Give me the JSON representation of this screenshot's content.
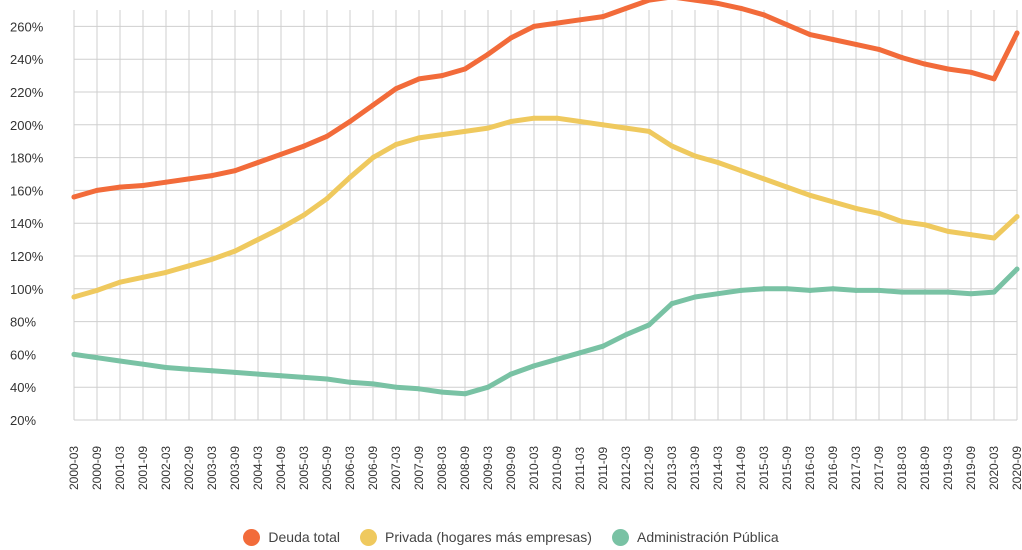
{
  "chart_data": {
    "type": "line",
    "title": "",
    "xlabel": "",
    "ylabel": "",
    "ylim": [
      20,
      270
    ],
    "y_ticks": [
      "20%",
      "40%",
      "60%",
      "80%",
      "100%",
      "120%",
      "140%",
      "160%",
      "180%",
      "200%",
      "220%",
      "240%",
      "260%"
    ],
    "y_tick_values": [
      20,
      40,
      60,
      80,
      100,
      120,
      140,
      160,
      180,
      200,
      220,
      240,
      260
    ],
    "x": [
      "2000-03",
      "2000-09",
      "2001-03",
      "2001-09",
      "2002-03",
      "2002-09",
      "2003-03",
      "2003-09",
      "2004-03",
      "2004-09",
      "2005-03",
      "2005-09",
      "2006-03",
      "2006-09",
      "2007-03",
      "2007-09",
      "2008-03",
      "2008-09",
      "2009-03",
      "2009-09",
      "2010-03",
      "2010-09",
      "2011-03",
      "2011-09",
      "2012-03",
      "2012-09",
      "2013-03",
      "2013-09",
      "2014-03",
      "2014-09",
      "2015-03",
      "2015-09",
      "2016-03",
      "2016-09",
      "2017-03",
      "2017-09",
      "2018-03",
      "2018-09",
      "2019-03",
      "2019-09",
      "2020-03",
      "2020-09"
    ],
    "grid": true,
    "legend_position": "bottom",
    "series": [
      {
        "name": "Deuda total",
        "color": "#f26b3a",
        "values": [
          156,
          160,
          162,
          163,
          165,
          167,
          169,
          172,
          177,
          182,
          187,
          193,
          202,
          212,
          222,
          228,
          230,
          234,
          243,
          253,
          260,
          262,
          264,
          266,
          271,
          276,
          278,
          276,
          274,
          271,
          267,
          261,
          255,
          252,
          249,
          246,
          241,
          237,
          234,
          232,
          228,
          256
        ]
      },
      {
        "name": "Privada (hogares más empresas)",
        "color": "#efc95e",
        "values": [
          95,
          99,
          104,
          107,
          110,
          114,
          118,
          123,
          130,
          137,
          145,
          155,
          168,
          180,
          188,
          192,
          194,
          196,
          198,
          202,
          204,
          204,
          202,
          200,
          198,
          196,
          187,
          181,
          177,
          172,
          167,
          162,
          157,
          153,
          149,
          146,
          141,
          139,
          135,
          133,
          131,
          144
        ]
      },
      {
        "name": "Administración Pública",
        "color": "#79c2a4",
        "values": [
          60,
          58,
          56,
          54,
          52,
          51,
          50,
          49,
          48,
          47,
          46,
          45,
          43,
          42,
          40,
          39,
          37,
          36,
          40,
          48,
          53,
          57,
          61,
          65,
          72,
          78,
          91,
          95,
          97,
          99,
          100,
          100,
          99,
          100,
          99,
          99,
          98,
          98,
          98,
          97,
          98,
          112
        ]
      }
    ]
  }
}
